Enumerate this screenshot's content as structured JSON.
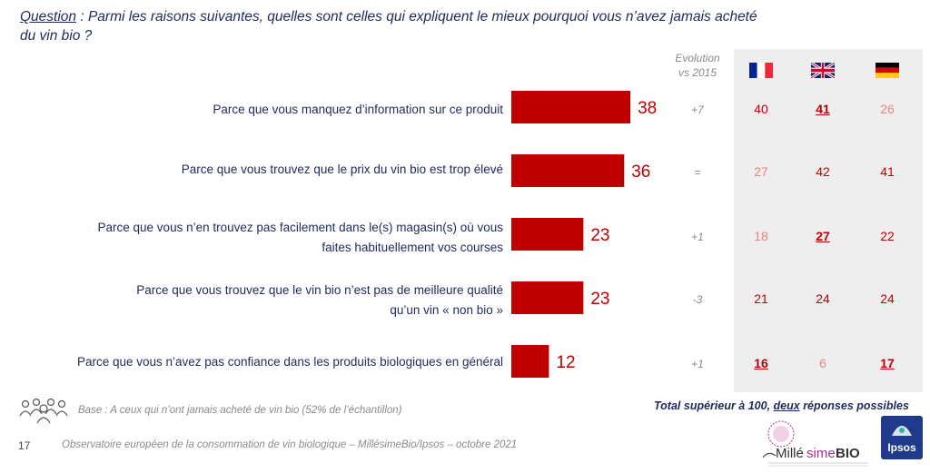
{
  "question": {
    "label": "Question",
    "text": " : Parmi les raisons suivantes, quelles sont celles qui expliquent le mieux pourquoi vous n’avez jamais acheté du vin bio ?"
  },
  "evolution_header_line1": "Evolution",
  "evolution_header_line2": "vs 2015",
  "flags": [
    {
      "icon": "france-flag-icon"
    },
    {
      "icon": "uk-flag-icon"
    },
    {
      "icon": "germany-flag-icon"
    }
  ],
  "colors": {
    "bar": "#c00000",
    "value_text": "#c00000",
    "country_strong": "#c00000",
    "country_light": "#f08080",
    "country_mid": "#8a8a8a",
    "text_dark": "#1f2a5c",
    "panel": "#eeeeee"
  },
  "chart_data": {
    "type": "bar",
    "orientation": "horizontal",
    "categories": [
      "Parce que vous manquez d’information sur ce produit",
      "Parce que vous trouvez que le prix du vin bio est trop élevé",
      "Parce que vous n’en trouvez pas facilement dans le(s) magasin(s) où vous faites habituellement vos courses",
      "Parce que vous trouvez que le vin bio n’est pas de meilleure qualité qu’un vin « non bio »",
      "Parce que vous n’avez pas confiance dans les produits biologiques en général"
    ],
    "values": [
      38,
      36,
      23,
      23,
      12
    ],
    "evolution_vs_2015": [
      "+7",
      "=",
      "+1",
      "-3",
      "+1"
    ],
    "countries": {
      "france": [
        40,
        27,
        18,
        21,
        16
      ],
      "uk": [
        41,
        42,
        27,
        24,
        6
      ],
      "germany": [
        26,
        41,
        22,
        24,
        17
      ]
    },
    "country_styles": {
      "france": [
        "strong",
        "light",
        "light",
        "strong",
        "sig"
      ],
      "uk": [
        "sig",
        "strong",
        "sig",
        "strong",
        "light"
      ],
      "germany": [
        "light",
        "strong",
        "strong",
        "strong",
        "sig"
      ]
    },
    "xlim": [
      0,
      100
    ],
    "title": "",
    "xlabel": "",
    "ylabel": ""
  },
  "label_lines": [
    [
      "Parce que vous manquez d’information sur ce produit"
    ],
    [
      "Parce que vous trouvez que le prix du vin bio est trop élevé"
    ],
    [
      "Parce que vous n’en trouvez pas facilement dans le(s) magasin(s) où vous",
      "faites habituellement vos courses"
    ],
    [
      "Parce que vous trouvez que le vin bio n’est pas de meilleure qualité",
      "qu’un vin « non bio »"
    ],
    [
      "Parce que vous n’avez pas confiance dans les produits biologiques en général"
    ]
  ],
  "total_note": {
    "prefix": "Total supérieur à 100, ",
    "underlined": "deux",
    "suffix": " réponses possibles"
  },
  "base_text": "Base : A ceux qui n’ont jamais acheté de vin bio (52% de l’échantillon)",
  "page_number": "17",
  "footer_text": "Observatoire européen de la consommation de vin biologique – MillésimeBio/Ipsos – octobre 2021",
  "logos": {
    "millesime": {
      "text_a": "Millé",
      "text_b": "sime",
      "text_c": "BIO"
    },
    "ipsos": {
      "text": "Ipsos"
    }
  }
}
